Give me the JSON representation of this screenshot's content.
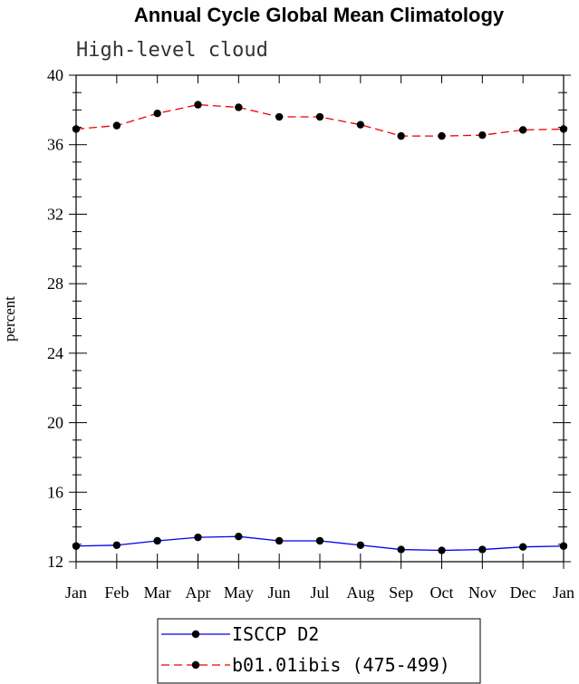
{
  "chart_data": {
    "type": "line",
    "title": "Annual Cycle Global Mean Climatology",
    "subtitle": "High-level cloud",
    "ylabel": "percent",
    "xlabel": "",
    "categories": [
      "Jan",
      "Feb",
      "Mar",
      "Apr",
      "May",
      "Jun",
      "Jul",
      "Aug",
      "Sep",
      "Oct",
      "Nov",
      "Dec",
      "Jan"
    ],
    "ylim": [
      12,
      40
    ],
    "yticks": [
      12,
      16,
      20,
      24,
      28,
      32,
      36,
      40
    ],
    "yticks_labels": [
      "12",
      "16",
      "20",
      "24",
      "28",
      "32",
      "36",
      "40"
    ],
    "grid": false,
    "legend_position": "bottom",
    "series": [
      {
        "name": "ISCCP D2",
        "color": "#0000ee",
        "dash": "solid",
        "values": [
          12.9,
          12.95,
          13.2,
          13.4,
          13.45,
          13.2,
          13.2,
          12.95,
          12.7,
          12.65,
          12.7,
          12.85,
          12.9
        ]
      },
      {
        "name": "b01.01ibis (475-499)",
        "color": "#ee0000",
        "dash": "dashed",
        "values": [
          36.9,
          37.1,
          37.8,
          38.3,
          38.15,
          37.6,
          37.6,
          37.15,
          36.5,
          36.5,
          36.55,
          36.85,
          36.9
        ]
      }
    ]
  }
}
